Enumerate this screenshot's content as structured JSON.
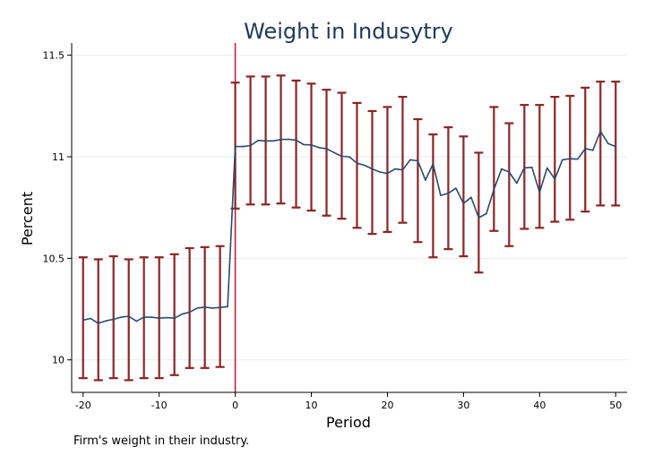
{
  "chart_data": {
    "type": "line",
    "title": "Weight in Indusytry",
    "xlabel": "Period",
    "ylabel": "Percent",
    "note": "Firm's weight in their industry.",
    "xlim": [
      -21.5,
      51.5
    ],
    "ylim": [
      9.84,
      11.56
    ],
    "xticks": [
      -20,
      -10,
      0,
      10,
      20,
      30,
      40,
      50
    ],
    "yticks": [
      10,
      10.5,
      11,
      11.5
    ],
    "ytick_labels": [
      "10",
      "10.5",
      "11",
      "11.5"
    ],
    "grid": true,
    "reference_line_x": 0,
    "colors": {
      "line": "#2b4a6e",
      "errorbar": "#8b2525",
      "refline": "#c8102e",
      "grid": "#e4ecf2",
      "axis": "#000000"
    },
    "series": [
      {
        "x": [
          -20,
          -19,
          -18,
          -17,
          -16,
          -15,
          -14,
          -13,
          -12,
          -11,
          -10,
          -9,
          -8,
          -7,
          -6,
          -5,
          -4,
          -3,
          -2,
          -1,
          0,
          1,
          2,
          3,
          4,
          5,
          6,
          7,
          8,
          9,
          10,
          11,
          12,
          13,
          14,
          15,
          16,
          17,
          18,
          19,
          20,
          21,
          22,
          23,
          24,
          25,
          26,
          27,
          28,
          29,
          30,
          31,
          32,
          33,
          34,
          35,
          36,
          37,
          38,
          39,
          40,
          41,
          42,
          43,
          44,
          45,
          46,
          47,
          48,
          49,
          50
        ],
        "y": [
          10.196,
          10.204,
          10.18,
          10.192,
          10.2,
          10.21,
          10.215,
          10.19,
          10.21,
          10.21,
          10.205,
          10.208,
          10.205,
          10.225,
          10.235,
          10.255,
          10.26,
          10.255,
          10.258,
          10.262,
          11.05,
          11.05,
          11.055,
          11.08,
          11.078,
          11.078,
          11.085,
          11.086,
          11.082,
          11.06,
          11.058,
          11.045,
          11.04,
          11.02,
          11.002,
          11.0,
          10.968,
          10.958,
          10.94,
          10.925,
          10.918,
          10.94,
          10.935,
          10.985,
          10.98,
          10.885,
          10.965,
          10.81,
          10.82,
          10.845,
          10.77,
          10.8,
          10.7,
          10.72,
          10.84,
          10.94,
          10.925,
          10.87,
          10.945,
          10.948,
          10.825,
          10.945,
          10.89,
          10.985,
          10.99,
          10.988,
          11.04,
          11.032,
          11.125,
          11.065,
          11.05
        ]
      }
    ],
    "error_bars": {
      "x": [
        -20,
        -18,
        -16,
        -14,
        -12,
        -10,
        -8,
        -6,
        -4,
        -2,
        0,
        2,
        4,
        6,
        8,
        10,
        12,
        14,
        16,
        18,
        20,
        22,
        24,
        26,
        28,
        30,
        32,
        34,
        36,
        38,
        40,
        42,
        44,
        46,
        48,
        50
      ],
      "lower": [
        9.91,
        9.9,
        9.91,
        9.9,
        9.91,
        9.91,
        9.925,
        9.96,
        9.96,
        9.965,
        10.745,
        10.765,
        10.765,
        10.77,
        10.75,
        10.735,
        10.71,
        10.695,
        10.65,
        10.62,
        10.63,
        10.675,
        10.58,
        10.505,
        10.545,
        10.51,
        10.43,
        10.635,
        10.56,
        10.645,
        10.65,
        10.68,
        10.69,
        10.73,
        10.76,
        10.76
      ],
      "upper": [
        10.505,
        10.495,
        10.51,
        10.495,
        10.505,
        10.505,
        10.52,
        10.55,
        10.555,
        10.56,
        11.365,
        11.395,
        11.395,
        11.4,
        11.375,
        11.36,
        11.33,
        11.315,
        11.265,
        11.225,
        11.245,
        11.295,
        11.185,
        11.11,
        11.145,
        11.1,
        11.02,
        11.245,
        11.165,
        11.255,
        11.255,
        11.295,
        11.3,
        11.34,
        11.37,
        11.37
      ]
    }
  }
}
